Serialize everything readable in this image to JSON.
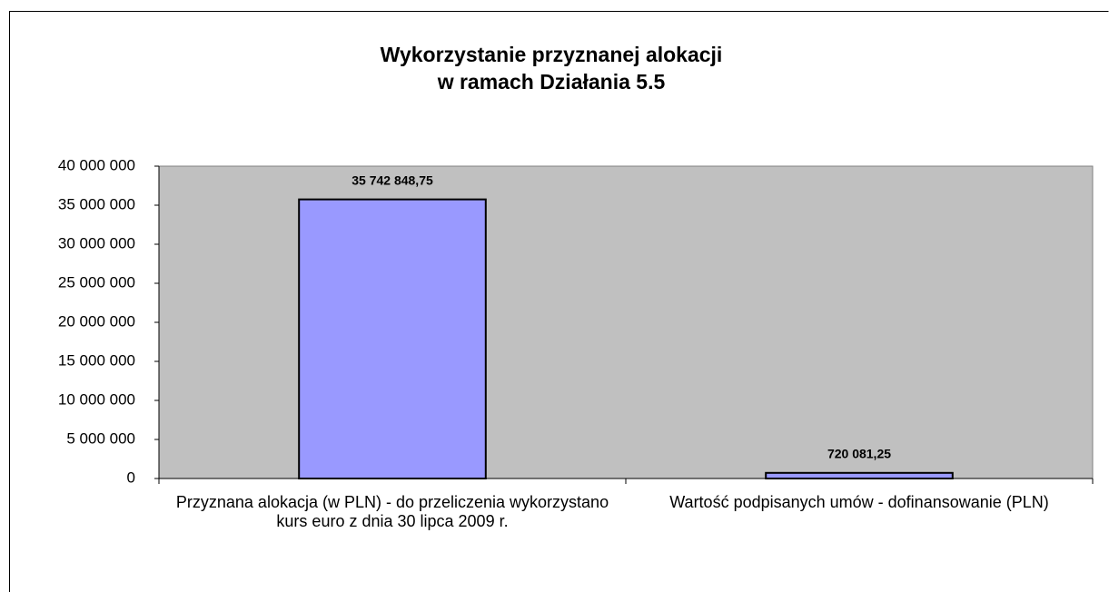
{
  "chart_data": {
    "type": "bar",
    "title": [
      "Wykorzystanie przyznanej alokacji",
      "w ramach Działania 5.5"
    ],
    "categories": [
      "Przyznana alokacja (w PLN) - do przeliczenia wykorzystano kurs euro z dnia 30 lipca 2009 r.",
      "Wartość podpisanych umów - dofinansowanie (PLN)"
    ],
    "values": [
      35742848.75,
      720081.25
    ],
    "value_labels": [
      "35 742 848,75",
      "720 081,25"
    ],
    "color": "#9999ff",
    "plot_background": "#c0c0c0",
    "ylim": [
      0,
      40000000
    ],
    "yticks": [
      0,
      {
        "value": 5000000,
        "label": "5 000 000"
      },
      {
        "value": 10000000,
        "label": "10 000 000"
      },
      {
        "value": 15000000,
        "label": "15 000 000"
      },
      {
        "value": 20000000,
        "label": "20 000 000"
      },
      {
        "value": 25000000,
        "label": "25 000 000"
      },
      {
        "value": 30000000,
        "label": "30 000 000"
      },
      {
        "value": 35000000,
        "label": "35 000 000"
      },
      {
        "value": 40000000,
        "label": "40 000 000"
      }
    ]
  }
}
